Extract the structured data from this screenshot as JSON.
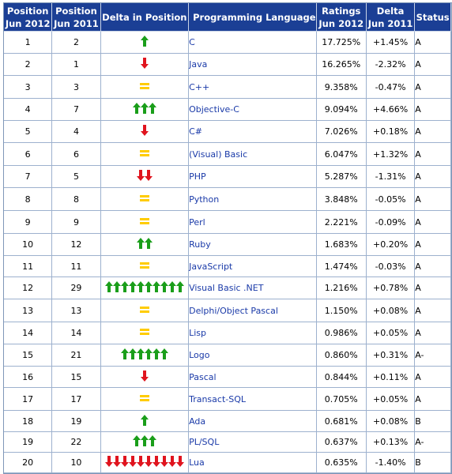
{
  "headers": {
    "pos2012": [
      "Position",
      "Jun 2012"
    ],
    "pos2011": [
      "Position",
      "Jun 2011"
    ],
    "delta_pos": "Delta in Position",
    "language": "Programming Language",
    "ratings": [
      "Ratings",
      "Jun 2012"
    ],
    "delta_rating": [
      "Delta",
      "Jun 2011"
    ],
    "status": "Status"
  },
  "colors": {
    "header_bg": "#1b3f95",
    "up": "#1a9e1a",
    "down": "#e0141e",
    "same": "#ffcc00",
    "link": "#1a3aa8"
  },
  "rows": [
    {
      "pos2012": "1",
      "pos2011": "2",
      "trend": "up",
      "count": 1,
      "language": "C",
      "rating": "17.725%",
      "delta": "+1.45%",
      "status": "A"
    },
    {
      "pos2012": "2",
      "pos2011": "1",
      "trend": "down",
      "count": 1,
      "language": "Java",
      "rating": "16.265%",
      "delta": "-2.32%",
      "status": "A"
    },
    {
      "pos2012": "3",
      "pos2011": "3",
      "trend": "same",
      "count": 1,
      "language": "C++",
      "rating": "9.358%",
      "delta": "-0.47%",
      "status": "A"
    },
    {
      "pos2012": "4",
      "pos2011": "7",
      "trend": "up",
      "count": 3,
      "language": "Objective-C",
      "rating": "9.094%",
      "delta": "+4.66%",
      "status": "A"
    },
    {
      "pos2012": "5",
      "pos2011": "4",
      "trend": "down",
      "count": 1,
      "language": "C#",
      "rating": "7.026%",
      "delta": "+0.18%",
      "status": "A"
    },
    {
      "pos2012": "6",
      "pos2011": "6",
      "trend": "same",
      "count": 1,
      "language": "(Visual) Basic",
      "rating": "6.047%",
      "delta": "+1.32%",
      "status": "A"
    },
    {
      "pos2012": "7",
      "pos2011": "5",
      "trend": "down",
      "count": 2,
      "language": "PHP",
      "rating": "5.287%",
      "delta": "-1.31%",
      "status": "A"
    },
    {
      "pos2012": "8",
      "pos2011": "8",
      "trend": "same",
      "count": 1,
      "language": "Python",
      "rating": "3.848%",
      "delta": "-0.05%",
      "status": "A"
    },
    {
      "pos2012": "9",
      "pos2011": "9",
      "trend": "same",
      "count": 1,
      "language": "Perl",
      "rating": "2.221%",
      "delta": "-0.09%",
      "status": "A"
    },
    {
      "pos2012": "10",
      "pos2011": "12",
      "trend": "up",
      "count": 2,
      "language": "Ruby",
      "rating": "1.683%",
      "delta": "+0.20%",
      "status": "A"
    },
    {
      "pos2012": "11",
      "pos2011": "11",
      "trend": "same",
      "count": 1,
      "language": "JavaScript",
      "rating": "1.474%",
      "delta": "-0.03%",
      "status": "A"
    },
    {
      "pos2012": "12",
      "pos2011": "29",
      "trend": "up",
      "count": 10,
      "language": "Visual Basic .NET",
      "rating": "1.216%",
      "delta": "+0.78%",
      "status": "A"
    },
    {
      "pos2012": "13",
      "pos2011": "13",
      "trend": "same",
      "count": 1,
      "language": "Delphi/Object Pascal",
      "rating": "1.150%",
      "delta": "+0.08%",
      "status": "A"
    },
    {
      "pos2012": "14",
      "pos2011": "14",
      "trend": "same",
      "count": 1,
      "language": "Lisp",
      "rating": "0.986%",
      "delta": "+0.05%",
      "status": "A"
    },
    {
      "pos2012": "15",
      "pos2011": "21",
      "trend": "up",
      "count": 6,
      "language": "Logo",
      "rating": "0.860%",
      "delta": "+0.31%",
      "status": "A-"
    },
    {
      "pos2012": "16",
      "pos2011": "15",
      "trend": "down",
      "count": 1,
      "language": "Pascal",
      "rating": "0.844%",
      "delta": "+0.11%",
      "status": "A"
    },
    {
      "pos2012": "17",
      "pos2011": "17",
      "trend": "same",
      "count": 1,
      "language": "Transact-SQL",
      "rating": "0.705%",
      "delta": "+0.05%",
      "status": "A"
    },
    {
      "pos2012": "18",
      "pos2011": "19",
      "trend": "up",
      "count": 1,
      "language": "Ada",
      "rating": "0.681%",
      "delta": "+0.08%",
      "status": "B"
    },
    {
      "pos2012": "19",
      "pos2011": "22",
      "trend": "up",
      "count": 3,
      "language": "PL/SQL",
      "rating": "0.637%",
      "delta": "+0.13%",
      "status": "A-"
    },
    {
      "pos2012": "20",
      "pos2011": "10",
      "trend": "down",
      "count": 10,
      "language": "Lua",
      "rating": "0.635%",
      "delta": "-1.40%",
      "status": "B"
    }
  ]
}
